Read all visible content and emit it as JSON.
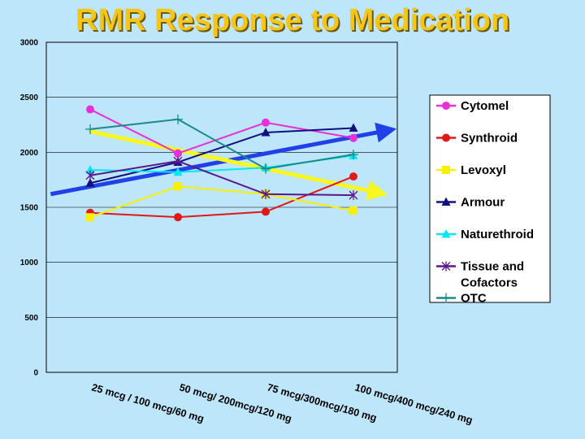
{
  "chart_data": {
    "type": "line",
    "title": "RMR Response to Medication",
    "xlabel": "",
    "ylabel": "",
    "ylim": [
      0,
      3000
    ],
    "yticks": [
      0,
      500,
      1000,
      1500,
      2000,
      2500,
      3000
    ],
    "grid": "horizontal",
    "legend_position": "right",
    "categories": [
      "25 mcg / 100 mcg/60 mg",
      "50 mcg/ 200mcg/120 mg",
      "75 mcg/300mcg/180 mg",
      "100 mcg/400 mcg/240 mg"
    ],
    "series": [
      {
        "name": "Cytomel",
        "color": "#e830d8",
        "marker": "circle",
        "values": [
          2390,
          1990,
          2270,
          2130
        ]
      },
      {
        "name": "Synthroid",
        "color": "#e01818",
        "marker": "circle",
        "values": [
          1450,
          1410,
          1460,
          1780
        ]
      },
      {
        "name": "Levoxyl",
        "color": "#f8f000",
        "marker": "square",
        "values": [
          1410,
          1690,
          1620,
          1470
        ]
      },
      {
        "name": "Armour",
        "color": "#101080",
        "marker": "triangle",
        "values": [
          1720,
          1910,
          2180,
          2220
        ]
      },
      {
        "name": "Naturethroid",
        "color": "#00e8f0",
        "marker": "triangle",
        "values": [
          1840,
          1820,
          1860,
          1970
        ]
      },
      {
        "name": "Tissue and Cofactors",
        "color": "#5a1890",
        "marker": "star",
        "values": [
          1790,
          1920,
          1620,
          1610
        ]
      },
      {
        "name": "OTC",
        "color": "#1a8a88",
        "marker": "plus",
        "values": [
          2210,
          2300,
          1850,
          1980
        ]
      }
    ],
    "trend_lines": [
      {
        "name": "rising-trend",
        "color": "#2040e8",
        "from": [
          0.55,
          1620
        ],
        "to": [
          4.4,
          2200
        ]
      },
      {
        "name": "falling-trend",
        "color": "#f8f820",
        "from": [
          1,
          2190
        ],
        "to": [
          4.3,
          1630
        ]
      }
    ]
  }
}
